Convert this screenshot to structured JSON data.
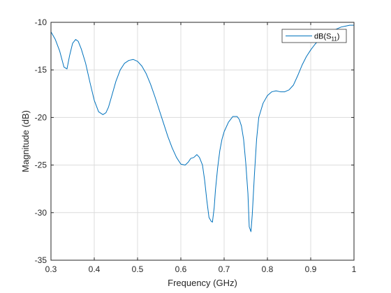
{
  "chart_data": {
    "type": "line",
    "title": "",
    "xlabel": "Frequency (GHz)",
    "ylabel": "Magnitude (dB)",
    "xlim": [
      0.3,
      1.0
    ],
    "ylim": [
      -35,
      -10
    ],
    "xticks": [
      0.3,
      0.4,
      0.5,
      0.6,
      0.7,
      0.8,
      0.9,
      1.0
    ],
    "xtick_labels": [
      "0.3",
      "0.4",
      "0.5",
      "0.6",
      "0.7",
      "0.8",
      "0.9",
      "1"
    ],
    "yticks": [
      -35,
      -30,
      -25,
      -20,
      -15,
      -10
    ],
    "ytick_labels": [
      "-35",
      "-30",
      "-25",
      "-20",
      "-15",
      "-10"
    ],
    "grid": true,
    "legend_position": "top-right",
    "colors": {
      "series": "#0072BD",
      "grid": "#dcdcdc",
      "axis": "#262626"
    },
    "series": [
      {
        "name": "dB(S11)",
        "legend_base": "dB(S",
        "legend_sub": "11",
        "legend_close": ")",
        "x": [
          0.3,
          0.31,
          0.32,
          0.33,
          0.337,
          0.343,
          0.35,
          0.357,
          0.363,
          0.37,
          0.38,
          0.39,
          0.4,
          0.41,
          0.42,
          0.427,
          0.433,
          0.44,
          0.45,
          0.46,
          0.47,
          0.48,
          0.49,
          0.5,
          0.51,
          0.52,
          0.53,
          0.54,
          0.55,
          0.56,
          0.57,
          0.58,
          0.59,
          0.6,
          0.61,
          0.617,
          0.623,
          0.63,
          0.637,
          0.643,
          0.65,
          0.655,
          0.66,
          0.665,
          0.67,
          0.673,
          0.677,
          0.68,
          0.685,
          0.69,
          0.695,
          0.7,
          0.71,
          0.72,
          0.725,
          0.73,
          0.735,
          0.74,
          0.745,
          0.75,
          0.755,
          0.758,
          0.762,
          0.765,
          0.77,
          0.775,
          0.78,
          0.79,
          0.8,
          0.81,
          0.82,
          0.83,
          0.84,
          0.85,
          0.86,
          0.87,
          0.88,
          0.89,
          0.9,
          0.91,
          0.92,
          0.93,
          0.94,
          0.95,
          0.96,
          0.97,
          0.98,
          0.99,
          1.0
        ],
        "y": [
          -11.0,
          -11.8,
          -13.0,
          -14.7,
          -14.9,
          -13.5,
          -12.2,
          -11.8,
          -12.0,
          -12.8,
          -14.3,
          -16.3,
          -18.2,
          -19.4,
          -19.7,
          -19.5,
          -18.9,
          -17.8,
          -16.2,
          -15.0,
          -14.3,
          -14.0,
          -13.9,
          -14.1,
          -14.6,
          -15.4,
          -16.5,
          -17.8,
          -19.2,
          -20.6,
          -22.0,
          -23.2,
          -24.2,
          -24.9,
          -25.0,
          -24.7,
          -24.3,
          -24.2,
          -23.9,
          -24.2,
          -25.0,
          -26.6,
          -28.7,
          -30.5,
          -30.9,
          -31.0,
          -29.5,
          -27.6,
          -25.3,
          -23.5,
          -22.3,
          -21.5,
          -20.5,
          -19.9,
          -19.9,
          -19.9,
          -20.2,
          -20.9,
          -22.3,
          -24.8,
          -28.0,
          -31.5,
          -32.0,
          -30.2,
          -26.0,
          -22.3,
          -20.0,
          -18.5,
          -17.7,
          -17.3,
          -17.2,
          -17.3,
          -17.3,
          -17.1,
          -16.6,
          -15.6,
          -14.5,
          -13.6,
          -12.9,
          -12.3,
          -11.8,
          -11.4,
          -11.1,
          -10.9,
          -10.7,
          -10.5,
          -10.4,
          -10.3,
          -10.3
        ]
      }
    ]
  }
}
